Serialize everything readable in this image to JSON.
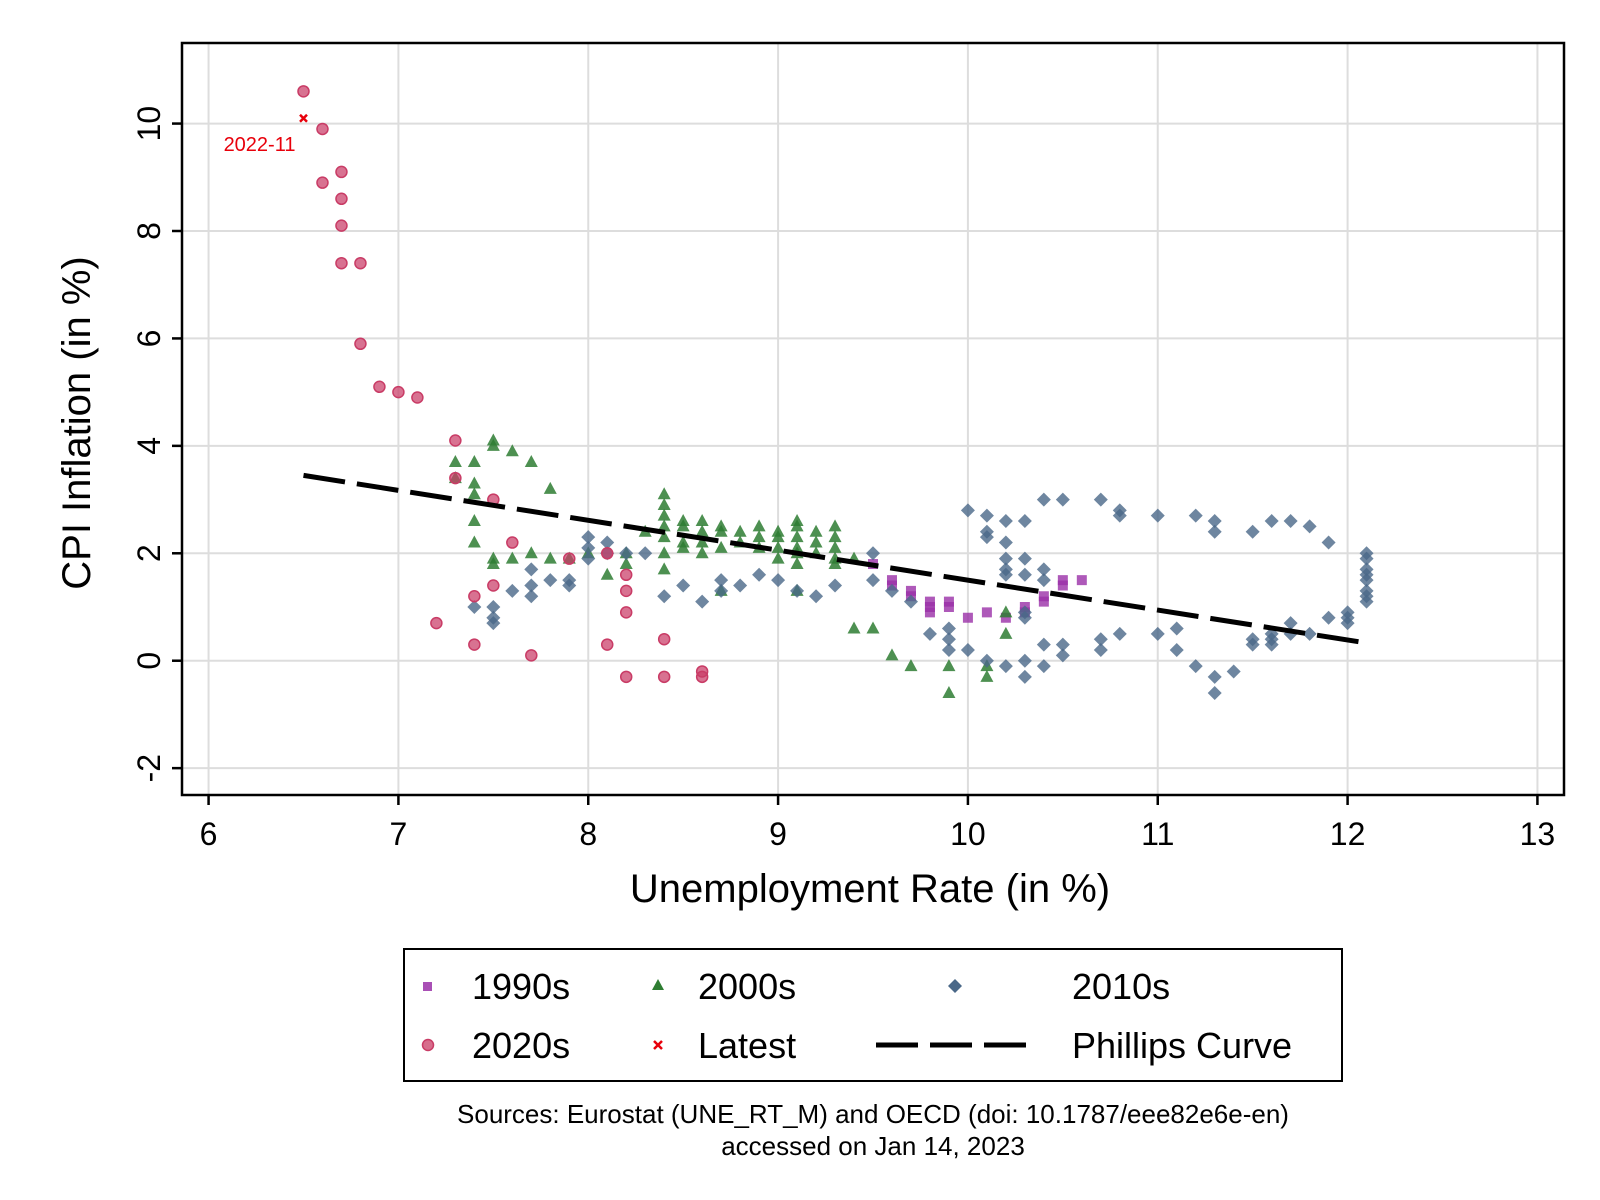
{
  "chart_data": {
    "type": "scatter",
    "title": "",
    "xlabel": "Unemployment Rate (in %)",
    "ylabel": "CPI Inflation (in %)",
    "xlim": [
      5.86,
      13.14
    ],
    "ylim": [
      -2.5,
      11.5
    ],
    "xticks": [
      "6",
      "7",
      "8",
      "9",
      "10",
      "11",
      "12",
      "13"
    ],
    "xtick_values": [
      6,
      7,
      8,
      9,
      10,
      11,
      12,
      13
    ],
    "yticks": [
      "-2",
      "0",
      "2",
      "4",
      "6",
      "8",
      "10"
    ],
    "ytick_values": [
      -2,
      0,
      2,
      4,
      6,
      8,
      10
    ],
    "grid": true,
    "legend_position": "bottom",
    "series": [
      {
        "name": "1990s",
        "marker": "square",
        "color": "#9a30a8",
        "points": [
          [
            9.5,
            1.8
          ],
          [
            9.6,
            1.4
          ],
          [
            9.6,
            1.5
          ],
          [
            9.7,
            1.3
          ],
          [
            9.7,
            1.2
          ],
          [
            9.8,
            1.1
          ],
          [
            9.8,
            1.0
          ],
          [
            9.8,
            0.9
          ],
          [
            9.9,
            1.1
          ],
          [
            9.9,
            1.0
          ],
          [
            10.0,
            0.8
          ],
          [
            10.1,
            0.9
          ],
          [
            10.2,
            0.8
          ],
          [
            10.3,
            1.0
          ],
          [
            10.3,
            0.9
          ],
          [
            10.4,
            1.1
          ],
          [
            10.4,
            1.2
          ],
          [
            10.5,
            1.4
          ],
          [
            10.5,
            1.5
          ],
          [
            10.6,
            1.5
          ]
        ]
      },
      {
        "name": "2000s",
        "marker": "triangle",
        "color": "#2e7d32",
        "points": [
          [
            7.3,
            3.7
          ],
          [
            7.3,
            3.4
          ],
          [
            7.4,
            3.7
          ],
          [
            7.4,
            3.3
          ],
          [
            7.4,
            3.1
          ],
          [
            7.4,
            2.6
          ],
          [
            7.4,
            2.2
          ],
          [
            7.5,
            4.1
          ],
          [
            7.5,
            4.0
          ],
          [
            7.5,
            1.9
          ],
          [
            7.5,
            1.8
          ],
          [
            7.6,
            3.9
          ],
          [
            7.6,
            1.9
          ],
          [
            7.7,
            3.7
          ],
          [
            7.7,
            2.0
          ],
          [
            7.8,
            3.2
          ],
          [
            7.8,
            1.9
          ],
          [
            7.9,
            1.9
          ],
          [
            8.0,
            2.0
          ],
          [
            8.1,
            1.6
          ],
          [
            8.2,
            2.0
          ],
          [
            8.2,
            1.8
          ],
          [
            8.3,
            2.4
          ],
          [
            8.4,
            3.1
          ],
          [
            8.4,
            2.9
          ],
          [
            8.4,
            2.7
          ],
          [
            8.4,
            2.5
          ],
          [
            8.4,
            2.3
          ],
          [
            8.4,
            2.0
          ],
          [
            8.4,
            1.7
          ],
          [
            8.5,
            2.6
          ],
          [
            8.5,
            2.5
          ],
          [
            8.5,
            2.2
          ],
          [
            8.5,
            2.1
          ],
          [
            8.6,
            2.6
          ],
          [
            8.6,
            2.4
          ],
          [
            8.6,
            2.2
          ],
          [
            8.6,
            2.0
          ],
          [
            8.7,
            2.5
          ],
          [
            8.7,
            2.4
          ],
          [
            8.7,
            2.1
          ],
          [
            8.7,
            1.3
          ],
          [
            8.8,
            2.4
          ],
          [
            8.8,
            2.2
          ],
          [
            8.9,
            2.5
          ],
          [
            8.9,
            2.3
          ],
          [
            8.9,
            2.1
          ],
          [
            9.0,
            2.4
          ],
          [
            9.0,
            2.3
          ],
          [
            9.0,
            2.1
          ],
          [
            9.0,
            1.9
          ],
          [
            9.1,
            2.6
          ],
          [
            9.1,
            2.5
          ],
          [
            9.1,
            2.3
          ],
          [
            9.1,
            2.1
          ],
          [
            9.1,
            2.0
          ],
          [
            9.1,
            1.8
          ],
          [
            9.1,
            1.3
          ],
          [
            9.2,
            2.4
          ],
          [
            9.2,
            2.2
          ],
          [
            9.2,
            2.0
          ],
          [
            9.3,
            2.5
          ],
          [
            9.3,
            2.3
          ],
          [
            9.3,
            2.1
          ],
          [
            9.3,
            1.9
          ],
          [
            9.3,
            1.8
          ],
          [
            9.4,
            1.9
          ],
          [
            9.4,
            0.6
          ],
          [
            9.5,
            0.6
          ],
          [
            9.6,
            0.1
          ],
          [
            9.7,
            -0.1
          ],
          [
            9.9,
            -0.1
          ],
          [
            9.9,
            -0.6
          ],
          [
            10.1,
            -0.1
          ],
          [
            10.1,
            -0.3
          ],
          [
            10.2,
            0.9
          ],
          [
            10.2,
            0.5
          ]
        ]
      },
      {
        "name": "2010s",
        "marker": "diamond",
        "color": "#4a6888",
        "points": [
          [
            7.4,
            1.0
          ],
          [
            7.5,
            1.0
          ],
          [
            7.5,
            0.8
          ],
          [
            7.5,
            0.7
          ],
          [
            7.6,
            1.3
          ],
          [
            7.7,
            1.7
          ],
          [
            7.7,
            1.4
          ],
          [
            7.7,
            1.2
          ],
          [
            7.8,
            1.5
          ],
          [
            7.9,
            1.5
          ],
          [
            7.9,
            1.4
          ],
          [
            8.0,
            2.3
          ],
          [
            8.0,
            2.1
          ],
          [
            8.0,
            1.9
          ],
          [
            8.1,
            2.2
          ],
          [
            8.1,
            2.0
          ],
          [
            8.2,
            2.0
          ],
          [
            8.3,
            2.0
          ],
          [
            8.4,
            1.2
          ],
          [
            8.5,
            1.4
          ],
          [
            8.6,
            1.1
          ],
          [
            8.7,
            1.5
          ],
          [
            8.7,
            1.3
          ],
          [
            8.8,
            1.4
          ],
          [
            8.9,
            1.6
          ],
          [
            9.0,
            1.5
          ],
          [
            9.1,
            1.3
          ],
          [
            9.2,
            1.2
          ],
          [
            9.3,
            1.4
          ],
          [
            9.5,
            2.0
          ],
          [
            9.5,
            1.5
          ],
          [
            9.6,
            1.3
          ],
          [
            9.7,
            1.1
          ],
          [
            9.8,
            0.5
          ],
          [
            9.9,
            0.6
          ],
          [
            9.9,
            0.4
          ],
          [
            9.9,
            0.2
          ],
          [
            10.0,
            2.8
          ],
          [
            10.0,
            0.2
          ],
          [
            10.1,
            2.7
          ],
          [
            10.1,
            2.4
          ],
          [
            10.1,
            2.3
          ],
          [
            10.1,
            0.0
          ],
          [
            10.2,
            2.6
          ],
          [
            10.2,
            2.2
          ],
          [
            10.2,
            1.9
          ],
          [
            10.2,
            1.7
          ],
          [
            10.2,
            1.6
          ],
          [
            10.2,
            -0.1
          ],
          [
            10.3,
            2.6
          ],
          [
            10.3,
            1.9
          ],
          [
            10.3,
            1.6
          ],
          [
            10.3,
            0.9
          ],
          [
            10.3,
            0.8
          ],
          [
            10.3,
            0.0
          ],
          [
            10.3,
            -0.3
          ],
          [
            10.4,
            3.0
          ],
          [
            10.4,
            1.7
          ],
          [
            10.4,
            1.5
          ],
          [
            10.4,
            0.3
          ],
          [
            10.4,
            -0.1
          ],
          [
            10.5,
            3.0
          ],
          [
            10.5,
            0.3
          ],
          [
            10.5,
            0.1
          ],
          [
            10.7,
            3.0
          ],
          [
            10.7,
            0.4
          ],
          [
            10.7,
            0.2
          ],
          [
            10.8,
            2.8
          ],
          [
            10.8,
            2.7
          ],
          [
            10.8,
            0.5
          ],
          [
            11.0,
            2.7
          ],
          [
            11.0,
            0.5
          ],
          [
            11.1,
            0.6
          ],
          [
            11.1,
            0.2
          ],
          [
            11.2,
            2.7
          ],
          [
            11.2,
            -0.1
          ],
          [
            11.3,
            2.6
          ],
          [
            11.3,
            2.4
          ],
          [
            11.3,
            -0.3
          ],
          [
            11.3,
            -0.6
          ],
          [
            11.4,
            -0.2
          ],
          [
            11.5,
            2.4
          ],
          [
            11.5,
            0.4
          ],
          [
            11.5,
            0.3
          ],
          [
            11.6,
            2.6
          ],
          [
            11.6,
            0.5
          ],
          [
            11.6,
            0.4
          ],
          [
            11.6,
            0.3
          ],
          [
            11.7,
            2.6
          ],
          [
            11.7,
            0.7
          ],
          [
            11.7,
            0.5
          ],
          [
            11.8,
            2.5
          ],
          [
            11.8,
            0.5
          ],
          [
            11.9,
            2.2
          ],
          [
            11.9,
            0.8
          ],
          [
            12.0,
            0.9
          ],
          [
            12.0,
            0.8
          ],
          [
            12.0,
            0.7
          ],
          [
            12.1,
            2.0
          ],
          [
            12.1,
            1.9
          ],
          [
            12.1,
            1.7
          ],
          [
            12.1,
            1.6
          ],
          [
            12.1,
            1.5
          ],
          [
            12.1,
            1.3
          ],
          [
            12.1,
            1.2
          ],
          [
            12.1,
            1.1
          ]
        ]
      },
      {
        "name": "2020s",
        "marker": "circle",
        "color": "#c93c66",
        "points": [
          [
            6.5,
            10.6
          ],
          [
            6.6,
            9.9
          ],
          [
            6.6,
            8.9
          ],
          [
            6.7,
            9.1
          ],
          [
            6.7,
            8.6
          ],
          [
            6.7,
            8.1
          ],
          [
            6.7,
            7.4
          ],
          [
            6.8,
            7.4
          ],
          [
            6.8,
            5.9
          ],
          [
            6.9,
            5.1
          ],
          [
            7.0,
            5.0
          ],
          [
            7.1,
            4.9
          ],
          [
            7.2,
            0.7
          ],
          [
            7.3,
            4.1
          ],
          [
            7.3,
            3.4
          ],
          [
            7.4,
            1.2
          ],
          [
            7.4,
            0.3
          ],
          [
            7.5,
            3.0
          ],
          [
            7.5,
            1.4
          ],
          [
            7.6,
            2.2
          ],
          [
            7.7,
            0.1
          ],
          [
            7.9,
            1.9
          ],
          [
            8.1,
            2.0
          ],
          [
            8.1,
            0.3
          ],
          [
            8.2,
            1.6
          ],
          [
            8.2,
            1.3
          ],
          [
            8.2,
            0.9
          ],
          [
            8.2,
            -0.3
          ],
          [
            8.4,
            0.4
          ],
          [
            8.4,
            -0.3
          ],
          [
            8.6,
            -0.2
          ],
          [
            8.6,
            -0.3
          ]
        ]
      },
      {
        "name": "Latest",
        "marker": "x",
        "color": "#e8000b",
        "points": [
          [
            6.5,
            10.1
          ]
        ],
        "annotation": "2022-11"
      },
      {
        "name": "Phillips Curve",
        "marker": "dashed-line",
        "color": "#000000",
        "points": [
          [
            6.5,
            3.45
          ],
          [
            12.1,
            0.33
          ]
        ]
      }
    ],
    "note_lines": [
      "Sources: Eurostat (UNE_RT_M) and OECD (doi: 10.1787/eee82e6e-en)",
      "accessed on Jan 14, 2023"
    ]
  }
}
